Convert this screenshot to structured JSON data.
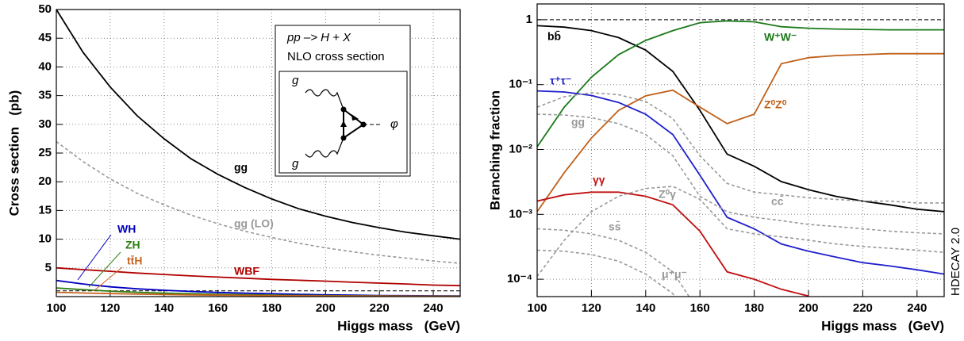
{
  "chart_data": [
    {
      "type": "line",
      "ylabel": "Cross section   (pb)",
      "xlabel": "Higgs mass   (GeV)",
      "annotations": [
        "pp –> H + X",
        "NLO cross section"
      ],
      "diagram_labels": [
        "g",
        "g",
        "φ"
      ],
      "x": [
        100,
        110,
        120,
        130,
        140,
        150,
        160,
        170,
        180,
        190,
        200,
        210,
        220,
        230,
        240,
        250
      ],
      "xlim": [
        100,
        250
      ],
      "xticks": [
        100,
        120,
        140,
        160,
        180,
        200,
        220,
        240
      ],
      "ylim": [
        0,
        50
      ],
      "yticks": [
        5,
        10,
        15,
        20,
        25,
        30,
        35,
        40,
        45,
        50
      ],
      "grid": true,
      "log": false,
      "hline": 1,
      "series": [
        {
          "name": "gg",
          "color": "#000000",
          "style": "solid",
          "values": [
            50,
            42.5,
            36.5,
            31.5,
            27.5,
            24,
            21.3,
            19,
            17,
            15.3,
            14,
            12.9,
            12,
            11.2,
            10.6,
            10
          ]
        },
        {
          "name": "gg (LO)",
          "color": "#999999",
          "style": "dashed",
          "values": [
            27,
            23.5,
            20.5,
            18,
            16,
            14.2,
            12.7,
            11.4,
            10.3,
            9.3,
            8.5,
            7.8,
            7.2,
            6.7,
            6.2,
            5.8
          ]
        },
        {
          "name": "WBF",
          "color": "#b00000",
          "style": "solid",
          "values": [
            5,
            4.7,
            4.4,
            4.1,
            3.85,
            3.6,
            3.4,
            3.2,
            3,
            2.85,
            2.7,
            2.5,
            2.35,
            2.2,
            2,
            1.9
          ]
        },
        {
          "name": "WH",
          "color": "#0000c0",
          "style": "solid",
          "values": [
            2.8,
            2.2,
            1.7,
            1.35,
            1.1,
            0.9,
            0.72,
            0.6,
            0.5,
            0.4,
            0.3,
            0.25,
            0.2,
            0.17,
            0.14,
            0.12
          ]
        },
        {
          "name": "ZH",
          "color": "#2e7d12",
          "style": "solid",
          "values": [
            1.5,
            1.2,
            0.95,
            0.75,
            0.6,
            0.5,
            0.4,
            0.33,
            0.27,
            0.21,
            0.17,
            0.14,
            0.12,
            0.1,
            0.08,
            0.07
          ]
        },
        {
          "name": "tt̄H",
          "color": "#c8641e",
          "style": "solid",
          "values": [
            0.75,
            0.62,
            0.52,
            0.43,
            0.36,
            0.3,
            0.25,
            0.21,
            0.18,
            0.15,
            0.12,
            0.1,
            0.09,
            0.08,
            0.07,
            0.06
          ]
        }
      ]
    },
    {
      "type": "line",
      "ylabel": "Branching fraction",
      "xlabel": "Higgs mass   (GeV)",
      "annotations": [
        "HDECAY 2.0"
      ],
      "x": [
        100,
        110,
        120,
        130,
        140,
        150,
        160,
        170,
        180,
        190,
        200,
        210,
        220,
        230,
        240,
        250
      ],
      "xlim": [
        100,
        250
      ],
      "xticks": [
        100,
        120,
        140,
        160,
        180,
        200,
        220,
        240
      ],
      "ylim": [
        5.4e-05,
        1.75
      ],
      "yticks": [
        {
          "value": 0.0001,
          "label": "10⁻⁴"
        },
        {
          "value": 0.001,
          "label": "10⁻³"
        },
        {
          "value": 0.01,
          "label": "10⁻²"
        },
        {
          "value": 0.1,
          "label": "10⁻¹"
        },
        1
      ],
      "grid": true,
      "log": true,
      "hline": 1,
      "series": [
        {
          "name": "bb̄",
          "color": "#000000",
          "style": "solid",
          "values": [
            0.81,
            0.77,
            0.68,
            0.53,
            0.34,
            0.16,
            0.04,
            0.0085,
            0.0055,
            0.0032,
            0.0024,
            0.0019,
            0.0016,
            0.0014,
            0.0012,
            0.0011
          ]
        },
        {
          "name": "W⁺W⁻",
          "color": "#1b7a1b",
          "style": "solid",
          "values": [
            0.011,
            0.045,
            0.13,
            0.29,
            0.48,
            0.68,
            0.9,
            0.96,
            0.93,
            0.78,
            0.74,
            0.72,
            0.71,
            0.7,
            0.7,
            0.7
          ]
        },
        {
          "name": "Z⁰Z⁰",
          "color": "#c0601a",
          "style": "solid",
          "values": [
            0.0011,
            0.0044,
            0.015,
            0.04,
            0.067,
            0.082,
            0.045,
            0.025,
            0.035,
            0.21,
            0.26,
            0.28,
            0.29,
            0.3,
            0.3,
            0.3
          ]
        },
        {
          "name": "τ⁺τ⁻",
          "color": "#1f1fcc",
          "style": "solid",
          "values": [
            0.08,
            0.077,
            0.068,
            0.053,
            0.035,
            0.017,
            0.004,
            0.0009,
            0.0006,
            0.00035,
            0.00027,
            0.00022,
            0.00018,
            0.00016,
            0.00014,
            0.00012
          ]
        },
        {
          "name": "gg",
          "color": "#999999",
          "style": "dashed",
          "values": [
            0.045,
            0.065,
            0.075,
            0.07,
            0.055,
            0.03,
            0.008,
            0.003,
            0.0022,
            0.002,
            0.0018,
            0.0017,
            0.0016,
            0.0016,
            0.0015,
            0.0015
          ]
        },
        {
          "name": "γγ",
          "color": "#c01010",
          "style": "solid",
          "values": [
            0.0016,
            0.002,
            0.0022,
            0.0022,
            0.0019,
            0.0014,
            0.00055,
            0.00013,
            0.0001,
            7e-05,
            5.5e-05,
            null,
            null,
            null,
            null,
            null
          ]
        },
        {
          "name": "Z⁰γ",
          "color": "#999999",
          "style": "dashed",
          "values": [
            0.00011,
            0.0004,
            0.0011,
            0.0019,
            0.0025,
            0.0027,
            0.0017,
            0.0006,
            0.0005,
            0.00045,
            0.0004,
            0.00035,
            0.00032,
            0.0003,
            0.00028,
            0.00026
          ]
        },
        {
          "name": "cc̄",
          "color": "#999999",
          "style": "dashed",
          "values": [
            0.035,
            0.034,
            0.031,
            0.025,
            0.017,
            0.008,
            0.0019,
            0.0011,
            0.0009,
            0.0008,
            0.0007,
            0.00065,
            0.0006,
            0.00055,
            0.00052,
            0.0005
          ]
        },
        {
          "name": "ss̄",
          "color": "#999999",
          "style": "dashed",
          "values": [
            0.0006,
            0.00057,
            0.0005,
            0.0004,
            0.00026,
            0.00013,
            3e-05,
            null,
            null,
            null,
            null,
            null,
            null,
            null,
            null,
            null
          ]
        },
        {
          "name": "μ⁺μ⁻",
          "color": "#999999",
          "style": "dashed",
          "values": [
            0.00028,
            0.00027,
            0.00024,
            0.00019,
            0.00012,
            6e-05,
            1.4e-05,
            null,
            null,
            null,
            null,
            null,
            null,
            null,
            null,
            null
          ]
        }
      ]
    }
  ]
}
